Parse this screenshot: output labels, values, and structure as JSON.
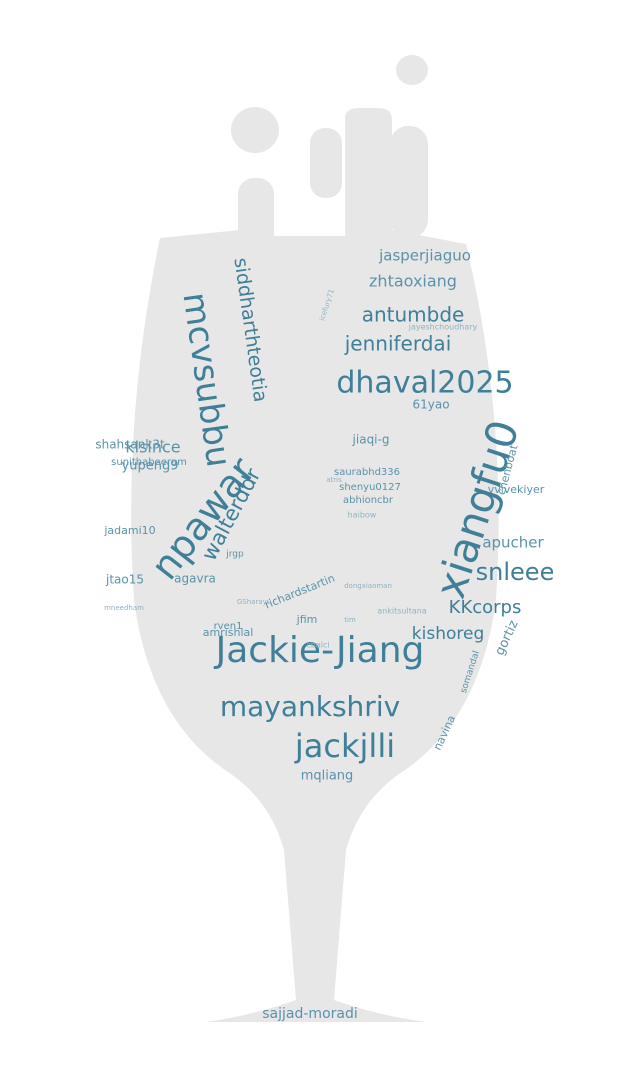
{
  "colors": {
    "background": "#ffffff",
    "shape_fill": "#e7e7e7",
    "word_dark": "#3f7f98",
    "word_mid": "#5a93a9",
    "word_light": "#8fb3c2"
  },
  "words": [
    {
      "text": "Jackie-Jiang",
      "weight": 100
    },
    {
      "text": "xiangfu0",
      "weight": 95
    },
    {
      "text": "npawar",
      "weight": 88
    },
    {
      "text": "dhaval2025",
      "weight": 80
    },
    {
      "text": "mayankshriv",
      "weight": 72
    },
    {
      "text": "jackjlli",
      "weight": 72
    },
    {
      "text": "mcvsubbu",
      "weight": 70
    },
    {
      "text": "snleee",
      "weight": 62
    },
    {
      "text": "siddharthteotia",
      "weight": 52
    },
    {
      "text": "jenniferdai",
      "weight": 48
    },
    {
      "text": "antumbde",
      "weight": 48
    },
    {
      "text": "walterddr",
      "weight": 46
    },
    {
      "text": "KKcorps",
      "weight": 45
    },
    {
      "text": "kishoreg",
      "weight": 40
    },
    {
      "text": "zhtaoxiang",
      "weight": 38
    },
    {
      "text": "jasperjiaguo",
      "weight": 36
    },
    {
      "text": "klsince",
      "weight": 36
    },
    {
      "text": "apucher",
      "weight": 34
    },
    {
      "text": "yupeng9",
      "weight": 32
    },
    {
      "text": "shahsank3t",
      "weight": 30
    },
    {
      "text": "sajjad-moradi",
      "weight": 30
    },
    {
      "text": "gortiz",
      "weight": 30
    },
    {
      "text": "mqliang",
      "weight": 30
    },
    {
      "text": "jtao15",
      "weight": 29
    },
    {
      "text": "agavra",
      "weight": 28
    },
    {
      "text": "jadami10",
      "weight": 27
    },
    {
      "text": "jiaqi-g",
      "weight": 26
    },
    {
      "text": "61yao",
      "weight": 26
    },
    {
      "text": "chenboat",
      "weight": 25
    },
    {
      "text": "vvivekiyer",
      "weight": 25
    },
    {
      "text": "richardstartin",
      "weight": 24
    },
    {
      "text": "amrishlal",
      "weight": 24
    },
    {
      "text": "navina",
      "weight": 24
    },
    {
      "text": "sunithabeeram",
      "weight": 23
    },
    {
      "text": "jfim",
      "weight": 23
    },
    {
      "text": "saurabhd336",
      "weight": 22
    },
    {
      "text": "shenyu0127",
      "weight": 22
    },
    {
      "text": "abhioncbr",
      "weight": 22
    },
    {
      "text": "rven1",
      "weight": 22
    },
    {
      "text": "somandal",
      "weight": 20
    },
    {
      "text": "jrgp",
      "weight": 20
    },
    {
      "text": "ankitsultana",
      "weight": 18
    },
    {
      "text": "GSharayu",
      "weight": 16
    },
    {
      "text": "haibow",
      "weight": 15
    },
    {
      "text": "cbalci",
      "weight": 15
    },
    {
      "text": "jayeshchoudhary",
      "weight": 15
    },
    {
      "text": "atris",
      "weight": 13
    },
    {
      "text": "tim",
      "weight": 12
    },
    {
      "text": "icefury71",
      "weight": 12
    },
    {
      "text": "dongxiaoman",
      "weight": 12
    },
    {
      "text": "mneedham",
      "weight": 12
    }
  ]
}
